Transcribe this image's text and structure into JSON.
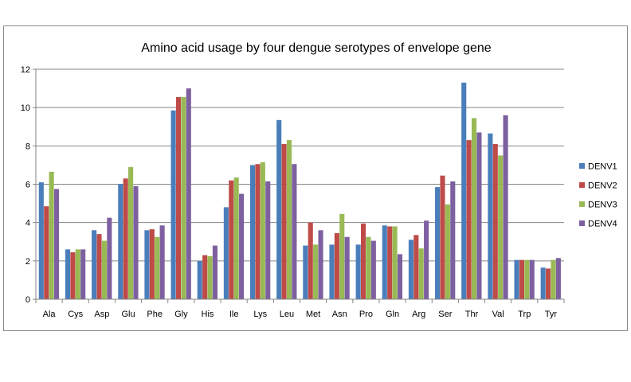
{
  "chart_data": {
    "type": "bar",
    "title": "Amino acid usage by four dengue serotypes of envelope gene",
    "xlabel": "",
    "ylabel": "",
    "ylim": [
      0,
      12
    ],
    "yticks": [
      0,
      2,
      4,
      6,
      8,
      10,
      12
    ],
    "grid": "horizontal",
    "legend_position": "right",
    "categories": [
      "Ala",
      "Cys",
      "Asp",
      "Glu",
      "Phe",
      "Gly",
      "His",
      "Ile",
      "Lys",
      "Leu",
      "Met",
      "Asn",
      "Pro",
      "Gln",
      "Arg",
      "Ser",
      "Thr",
      "Val",
      "Trp",
      "Tyr"
    ],
    "series": [
      {
        "name": "DENV1",
        "color": "#4a7ebb",
        "values": [
          6.1,
          2.6,
          3.6,
          6.0,
          3.6,
          9.85,
          2.0,
          4.8,
          7.0,
          9.35,
          2.8,
          2.85,
          2.85,
          3.85,
          3.1,
          5.85,
          11.3,
          8.65,
          2.05,
          1.65
        ]
      },
      {
        "name": "DENV2",
        "color": "#be4b48",
        "values": [
          4.85,
          2.45,
          3.4,
          6.3,
          3.65,
          10.55,
          2.3,
          6.2,
          7.05,
          8.1,
          4.0,
          3.45,
          3.95,
          3.8,
          3.35,
          6.45,
          8.3,
          8.1,
          2.05,
          1.6
        ]
      },
      {
        "name": "DENV3",
        "color": "#98b954",
        "values": [
          6.65,
          2.6,
          3.05,
          6.9,
          3.25,
          10.55,
          2.25,
          6.35,
          7.15,
          8.3,
          2.85,
          4.45,
          3.25,
          3.8,
          2.65,
          4.95,
          9.45,
          7.5,
          2.05,
          2.05
        ]
      },
      {
        "name": "DENV4",
        "color": "#7d60a0",
        "values": [
          5.75,
          2.6,
          4.25,
          5.9,
          3.85,
          11.0,
          2.8,
          5.5,
          6.15,
          7.05,
          3.6,
          3.25,
          3.05,
          2.35,
          4.1,
          6.15,
          8.7,
          9.6,
          2.05,
          2.15
        ]
      }
    ]
  }
}
